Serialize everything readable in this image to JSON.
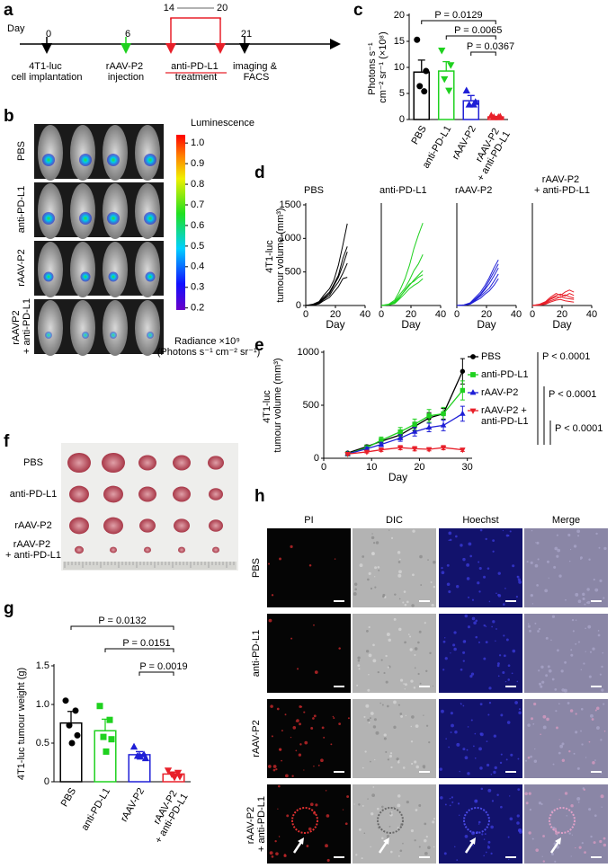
{
  "panel_labels": [
    "a",
    "b",
    "c",
    "d",
    "e",
    "f",
    "g",
    "h"
  ],
  "timeline": {
    "axis_label": "Day",
    "days": [
      0,
      6,
      14,
      20,
      21
    ],
    "events": [
      "4T1-luc\ncell implantation",
      "rAAV-P2\ninjection",
      "anti-PD-L1\ntreatment",
      "imaging &\nFACS"
    ]
  },
  "imaging": {
    "groups": [
      "PBS",
      "anti-PD-L1",
      "rAAV-P2",
      "rAAVP2\n+ anti-PD-L1"
    ],
    "colorbar": {
      "title": "Luminescence",
      "range": [
        0.19,
        1.04
      ],
      "ticks": [
        {
          "value": 1,
          "label": "1.0"
        },
        0.9,
        0.8,
        0.7,
        0.6,
        0.5,
        0.4,
        0.3,
        0.2
      ],
      "label": "Radiance ×10⁹\n(Photons s⁻¹ cm⁻² sr⁻¹)"
    }
  },
  "tumour_photo": {
    "groups": [
      "PBS",
      "anti-PD-L1",
      "rAAV-P2",
      "rAAV-P2\n+ anti-PD-L1"
    ]
  },
  "microscopy": {
    "columns": [
      "PI",
      "DIC",
      "Hoechst",
      "Merge"
    ],
    "rows": [
      "PBS",
      "anti-PD-L1",
      "rAAV-P2",
      "rAAV-P2\n+ anti-PD-L1"
    ]
  },
  "chart_data": [
    {
      "type": "bar",
      "ylabel": "Photons s⁻¹\ncm⁻² sr⁻¹ (×10⁸)",
      "categories": [
        "PBS",
        "anti-PD-L1",
        "rAAV-P2",
        "rAAV-P2\n+ anti-PD-L1"
      ],
      "colors": [
        "#000000",
        "#1fd11f",
        "#1f1fd6",
        "#e8202a"
      ],
      "markers": [
        "circle",
        "triangle-down",
        "triangle-up",
        "triangle-up"
      ],
      "values": [
        9.1,
        9.3,
        3.6,
        0.5
      ],
      "errors": [
        2.3,
        1.8,
        1.0,
        0.1
      ],
      "points": [
        [
          15.3,
          9.3,
          6.4,
          5.4
        ],
        [
          13.3,
          10.5,
          7.8,
          5.6
        ],
        [
          5.5,
          3.3,
          2.8,
          2.8
        ],
        [
          0.7,
          0.5,
          0.4,
          0.4
        ]
      ],
      "ylim": [
        0,
        20
      ],
      "yticks": [
        0,
        5,
        10,
        15,
        20
      ],
      "annotations": [
        "P = 0.0129",
        "P = 0.0065",
        "P = 0.0367"
      ]
    },
    {
      "type": "line",
      "title": "PBS",
      "xlabel": "Day",
      "ylabel": "4T1-luc\ntumour volume (mm³)",
      "x": [
        0,
        5,
        9,
        12,
        16,
        19,
        22,
        25,
        28
      ],
      "xlim": [
        0,
        40
      ],
      "xticks": [
        0,
        20,
        40
      ],
      "ylim": [
        0,
        1500
      ],
      "yticks": [
        0,
        500,
        1000,
        1500
      ],
      "series": [
        {
          "color": "#000000",
          "values": [
            0,
            20,
            60,
            150,
            250,
            380,
            600,
            900,
            1220
          ]
        },
        {
          "color": "#000000",
          "values": [
            0,
            15,
            50,
            120,
            200,
            320,
            450,
            700,
            880
          ]
        },
        {
          "color": "#000000",
          "values": [
            0,
            10,
            40,
            100,
            180,
            300,
            420,
            600,
            800
          ]
        },
        {
          "color": "#000000",
          "values": [
            0,
            10,
            30,
            90,
            150,
            260,
            350,
            480,
            630
          ]
        },
        {
          "color": "#000000",
          "values": [
            0,
            5,
            25,
            70,
            120,
            200,
            280,
            400,
            420
          ]
        }
      ]
    },
    {
      "type": "line",
      "title": "anti-PD-L1",
      "xlabel": "Day",
      "x": [
        0,
        5,
        9,
        12,
        16,
        19,
        22,
        25,
        28
      ],
      "xlim": [
        0,
        40
      ],
      "xticks": [
        0,
        20,
        40
      ],
      "ylim": [
        0,
        1500
      ],
      "series": [
        {
          "color": "#1fd11f",
          "values": [
            0,
            20,
            80,
            200,
            400,
            600,
            850,
            1050,
            1230
          ]
        },
        {
          "color": "#1fd11f",
          "values": [
            0,
            15,
            60,
            150,
            260,
            380,
            520,
            620,
            760
          ]
        },
        {
          "color": "#1fd11f",
          "values": [
            0,
            10,
            50,
            120,
            220,
            300,
            380,
            450,
            520
          ]
        },
        {
          "color": "#1fd11f",
          "values": [
            0,
            10,
            40,
            110,
            230,
            320,
            360,
            420,
            460
          ]
        },
        {
          "color": "#1fd11f",
          "values": [
            0,
            8,
            30,
            90,
            180,
            250,
            300,
            340,
            400
          ]
        }
      ]
    },
    {
      "type": "line",
      "title": "rAAV-P2",
      "xlabel": "Day",
      "x": [
        0,
        5,
        9,
        12,
        16,
        19,
        22,
        25,
        28
      ],
      "xlim": [
        0,
        40
      ],
      "xticks": [
        0,
        20,
        40
      ],
      "ylim": [
        0,
        1500
      ],
      "series": [
        {
          "color": "#1f1fd6",
          "values": [
            0,
            10,
            40,
            110,
            200,
            300,
            420,
            560,
            680
          ]
        },
        {
          "color": "#1f1fd6",
          "values": [
            0,
            8,
            35,
            90,
            170,
            260,
            380,
            500,
            620
          ]
        },
        {
          "color": "#1f1fd6",
          "values": [
            0,
            8,
            30,
            80,
            160,
            240,
            330,
            440,
            560
          ]
        },
        {
          "color": "#1f1fd6",
          "values": [
            0,
            5,
            25,
            70,
            140,
            200,
            260,
            360,
            470
          ]
        },
        {
          "color": "#1f1fd6",
          "values": [
            0,
            5,
            20,
            60,
            110,
            170,
            220,
            300,
            400
          ]
        }
      ]
    },
    {
      "type": "line",
      "title": "rAAV-P2\n+ anti-PD-L1",
      "xlabel": "Day",
      "x": [
        0,
        5,
        9,
        12,
        16,
        19,
        22,
        25,
        28
      ],
      "xlim": [
        0,
        40
      ],
      "xticks": [
        0,
        20,
        40
      ],
      "ylim": [
        0,
        1500
      ],
      "series": [
        {
          "color": "#e8202a",
          "values": [
            0,
            20,
            60,
            120,
            180,
            150,
            200,
            230,
            200
          ]
        },
        {
          "color": "#e8202a",
          "values": [
            0,
            15,
            50,
            100,
            150,
            170,
            140,
            180,
            150
          ]
        },
        {
          "color": "#e8202a",
          "values": [
            0,
            10,
            40,
            90,
            130,
            120,
            160,
            130,
            110
          ]
        },
        {
          "color": "#e8202a",
          "values": [
            0,
            10,
            30,
            70,
            100,
            130,
            110,
            100,
            90
          ]
        },
        {
          "color": "#e8202a",
          "values": [
            0,
            5,
            20,
            50,
            80,
            90,
            70,
            60,
            50
          ]
        }
      ]
    },
    {
      "type": "line",
      "xlabel": "Day",
      "ylabel": "4T1-luc\ntumour volume (mm³)",
      "x": [
        5,
        9,
        12,
        16,
        19,
        22,
        25,
        29
      ],
      "xlim": [
        0,
        31
      ],
      "xticks": [
        0,
        10,
        20,
        30
      ],
      "ylim": [
        0,
        1000
      ],
      "yticks": [
        0,
        500,
        1000
      ],
      "series": [
        {
          "name": "PBS",
          "color": "#000000",
          "marker": "circle",
          "values": [
            50,
            110,
            160,
            220,
            300,
            380,
            420,
            820
          ],
          "errors": [
            10,
            15,
            20,
            30,
            40,
            50,
            50,
            120
          ]
        },
        {
          "name": "anti-PD-L1",
          "color": "#1fd11f",
          "marker": "square",
          "values": [
            40,
            100,
            170,
            250,
            320,
            400,
            420,
            640
          ],
          "errors": [
            10,
            20,
            30,
            40,
            50,
            60,
            60,
            90
          ]
        },
        {
          "name": "rAAV-P2",
          "color": "#1f1fd6",
          "marker": "triangle-up",
          "values": [
            40,
            90,
            130,
            190,
            250,
            290,
            310,
            420
          ],
          "errors": [
            8,
            15,
            20,
            30,
            40,
            40,
            50,
            70
          ]
        },
        {
          "name": "rAAV-P2 +\nanti-PD-L1",
          "color": "#e8202a",
          "marker": "triangle-down",
          "values": [
            40,
            60,
            80,
            100,
            90,
            85,
            100,
            80
          ],
          "errors": [
            8,
            10,
            15,
            20,
            20,
            15,
            20,
            15
          ]
        }
      ],
      "annotations": [
        "P < 0.0001",
        "P < 0.0001",
        "P < 0.0001"
      ]
    },
    {
      "type": "bar",
      "ylabel": "4T1-luc tumour weight (g)",
      "categories": [
        "PBS",
        "anti-PD-L1",
        "rAAV-P2",
        "rAAV-P2\n+ anti-PD-L1"
      ],
      "colors": [
        "#000000",
        "#1fd11f",
        "#1f1fd6",
        "#e8202a"
      ],
      "markers": [
        "circle",
        "square",
        "triangle-up",
        "triangle-down"
      ],
      "values": [
        0.76,
        0.66,
        0.35,
        0.1
      ],
      "errors": [
        0.15,
        0.15,
        0.04,
        0.02
      ],
      "points": [
        [
          1.05,
          0.92,
          0.73,
          0.6,
          0.5
        ],
        [
          0.98,
          0.8,
          0.58,
          0.55,
          0.39
        ],
        [
          0.45,
          0.35,
          0.33,
          0.3,
          0.32
        ],
        [
          0.15,
          0.12,
          0.1,
          0.07,
          0.06
        ]
      ],
      "ylim": [
        0,
        1.5
      ],
      "yticks": [
        0,
        0.5,
        {
          "value": 1,
          "label": "1.0"
        },
        1.5
      ],
      "annotations": [
        "P = 0.0132",
        "P = 0.0151",
        "P = 0.0019"
      ]
    }
  ]
}
